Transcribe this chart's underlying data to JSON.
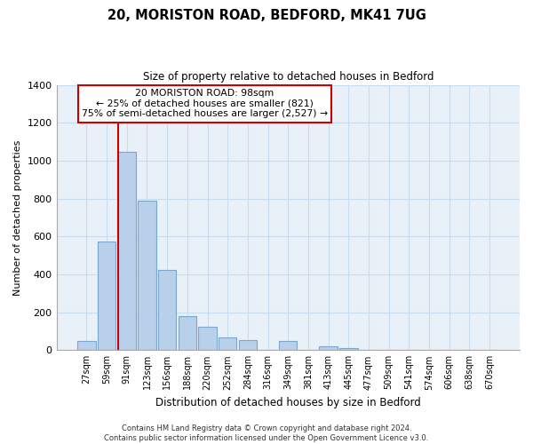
{
  "title": "20, MORISTON ROAD, BEDFORD, MK41 7UG",
  "subtitle": "Size of property relative to detached houses in Bedford",
  "xlabel": "Distribution of detached houses by size in Bedford",
  "ylabel": "Number of detached properties",
  "bar_labels": [
    "27sqm",
    "59sqm",
    "91sqm",
    "123sqm",
    "156sqm",
    "188sqm",
    "220sqm",
    "252sqm",
    "284sqm",
    "316sqm",
    "349sqm",
    "381sqm",
    "413sqm",
    "445sqm",
    "477sqm",
    "509sqm",
    "541sqm",
    "574sqm",
    "606sqm",
    "638sqm",
    "670sqm"
  ],
  "bar_heights": [
    50,
    575,
    1045,
    790,
    425,
    178,
    125,
    65,
    55,
    0,
    48,
    0,
    22,
    10,
    0,
    0,
    0,
    0,
    0,
    0,
    0
  ],
  "bar_color": "#b8d0ea",
  "bar_edge_color": "#7ba7cc",
  "vline_x_idx": 2,
  "vline_color": "#cc0000",
  "annotation_title": "20 MORISTON ROAD: 98sqm",
  "annotation_line1": "← 25% of detached houses are smaller (821)",
  "annotation_line2": "75% of semi-detached houses are larger (2,527) →",
  "ylim": [
    0,
    1400
  ],
  "yticks": [
    0,
    200,
    400,
    600,
    800,
    1000,
    1200,
    1400
  ],
  "footer_line1": "Contains HM Land Registry data © Crown copyright and database right 2024.",
  "footer_line2": "Contains public sector information licensed under the Open Government Licence v3.0.",
  "background_color": "#ffffff",
  "grid_color": "#c8ddf0",
  "box_color": "#cc0000",
  "figsize": [
    6.0,
    5.0
  ],
  "dpi": 100
}
